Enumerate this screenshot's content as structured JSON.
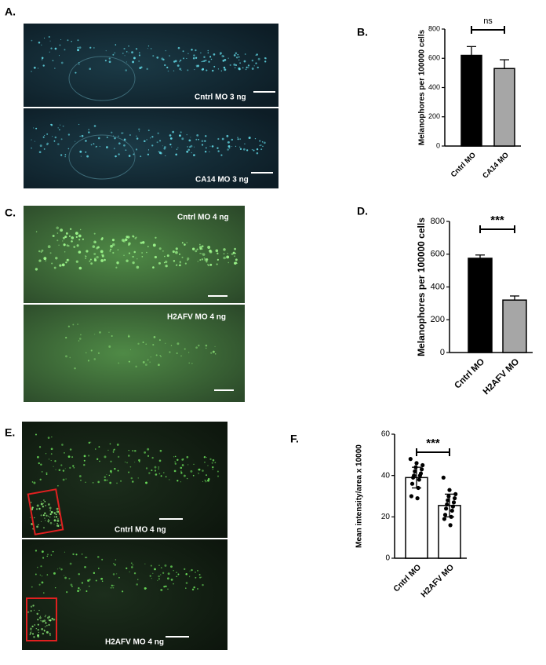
{
  "figure": {
    "panel_labels": [
      "A.",
      "B.",
      "C.",
      "D.",
      "E.",
      "F."
    ],
    "image_labels": [
      "Cntrl MO 3  ng",
      "CA14 MO 3 ng",
      "Cntrl MO 4 ng",
      "H2AFV  MO 4 ng",
      "Cntrl MO  4 ng",
      "H2AFV MO 4 ng"
    ]
  },
  "chart_data": [
    {
      "type": "bar",
      "ylabel": "Melanophores per 100000 cells",
      "categories": [
        "Cntrl MO",
        "CA14 MO"
      ],
      "values": [
        620,
        530
      ],
      "errors": [
        60,
        60
      ],
      "colors": [
        "#000000",
        "#a6a6a6"
      ],
      "ylim": [
        0,
        800
      ],
      "yticks": [
        0,
        200,
        400,
        600,
        800
      ],
      "annotation": "ns"
    },
    {
      "type": "bar",
      "ylabel": "Melanophores per 100000 cells",
      "categories": [
        "Cntrl MO",
        "H2AFV MO"
      ],
      "values": [
        575,
        320
      ],
      "errors": [
        20,
        25
      ],
      "colors": [
        "#000000",
        "#a6a6a6"
      ],
      "ylim": [
        0,
        800
      ],
      "yticks": [
        0,
        200,
        400,
        600,
        800
      ],
      "annotation": "***"
    },
    {
      "type": "bar",
      "ylabel": "Mean intensity/area x 10000",
      "categories": [
        "Cntrl MO",
        "H2AFV MO"
      ],
      "values": [
        39,
        25.5
      ],
      "errors": [
        5,
        5.5
      ],
      "colors": [
        "#ffffff",
        "#ffffff"
      ],
      "points": [
        [
          48,
          46,
          45,
          44,
          43,
          42,
          41,
          40,
          40,
          39,
          38,
          36,
          34,
          30,
          29
        ],
        [
          39,
          33,
          31,
          30,
          29,
          28,
          27,
          26,
          25,
          24,
          23,
          21,
          20,
          19,
          16
        ]
      ],
      "ylim": [
        0,
        60
      ],
      "yticks": [
        0,
        20,
        40,
        60
      ],
      "annotation": "***"
    }
  ]
}
